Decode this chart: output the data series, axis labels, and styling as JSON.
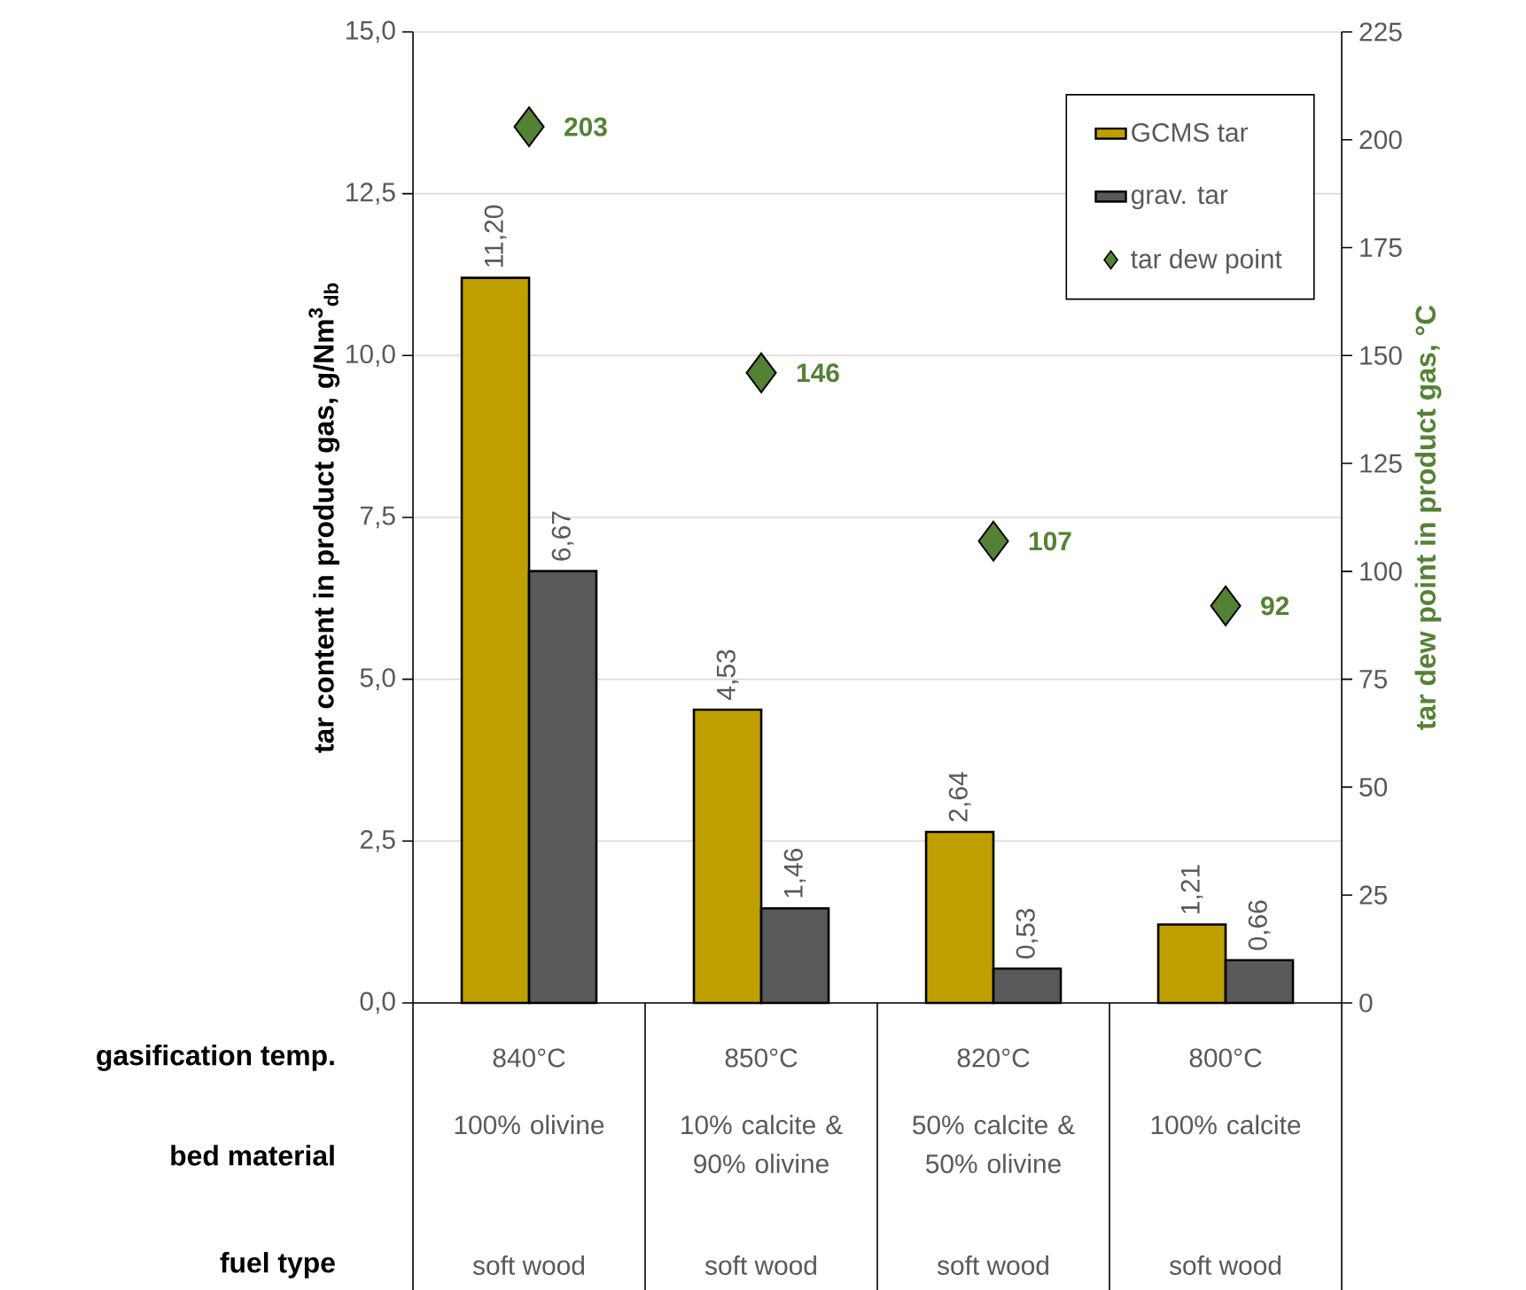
{
  "chart_data": {
    "type": "bar",
    "ylabel": "tar content in product gas, g/Nm$^{3}$$_{db}$",
    "y2label": "tar dew point in  product gas, °C",
    "categories": [
      "840°C",
      "850°C",
      "820°C",
      "800°C"
    ],
    "series": [
      {
        "name": "GCMS tar",
        "color": "#bfa000",
        "values": [
          11.2,
          4.53,
          2.64,
          1.21
        ],
        "value_labels": [
          "11,20",
          "4,53",
          "2,64",
          "1,21"
        ]
      },
      {
        "name": "grav. tar",
        "color": "#595959",
        "values": [
          6.67,
          1.46,
          0.53,
          0.66
        ],
        "value_labels": [
          "6,67",
          "1,46",
          "0,53",
          "0,66"
        ]
      },
      {
        "name": "tar dew point",
        "type": "scatter",
        "axis": "y2",
        "marker": "diamond",
        "color": "#548235",
        "values": [
          203,
          146,
          107,
          92
        ],
        "value_labels": [
          "203",
          "146",
          "107",
          "92"
        ]
      }
    ],
    "ylim": [
      0,
      15
    ],
    "yticks": [
      {
        "value": 0,
        "label": "0,0"
      },
      {
        "value": 2.5,
        "label": "2,5"
      },
      {
        "value": 5,
        "label": "5,0"
      },
      {
        "value": 7.5,
        "label": "7,5"
      },
      {
        "value": 10,
        "label": "10,0"
      },
      {
        "value": 12.5,
        "label": "12,5"
      },
      {
        "value": 15,
        "label": "15,0"
      }
    ],
    "y2lim": [
      0,
      225
    ],
    "y2ticks": [
      0,
      25,
      50,
      75,
      100,
      125,
      150,
      175,
      200,
      225
    ],
    "grid": "y",
    "legend": "top right",
    "annotations": [
      "gasification temp.",
      "bed material",
      "fuel type",
      "100% olivine",
      "10% calcite & 90% olivine",
      "50% calcite & 50% olivine",
      "100% calcite",
      "soft wood",
      "soft wood",
      "soft wood",
      "soft wood"
    ]
  }
}
